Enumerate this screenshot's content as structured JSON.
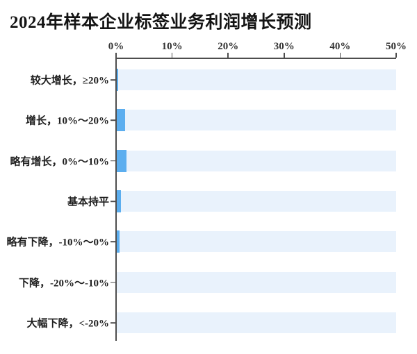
{
  "chart_data": {
    "type": "bar",
    "orientation": "horizontal",
    "title": "2024年样本企业标签业务利润增长预测",
    "categories": [
      "较大增长，≥20%",
      "增长，10%～20%",
      "略有增长，0%～10%",
      "基本持平",
      "略有下降，-10%～0%",
      "下降，-20%～-10%",
      "大幅下降，<-20%"
    ],
    "values": [
      0.25,
      1.5,
      1.75,
      0.75,
      0.5,
      0,
      0
    ],
    "value_unit": "%",
    "xlabel": "",
    "ylabel": "",
    "xlim": [
      0,
      50
    ],
    "x_tick_values": [
      0,
      10,
      20,
      30,
      40,
      50
    ],
    "x_tick_labels": [
      "0%",
      "10%",
      "20%",
      "30%",
      "40%",
      "50%"
    ],
    "axis_position": "top",
    "grid": "off",
    "legend": "none",
    "colors": {
      "bar": "#5caeef",
      "track": "#e9f2fc",
      "axis": "#4d4d4d",
      "tick_label": "#333333",
      "category_label": "#1f1f1f",
      "title": "#141414",
      "background": "#ffffff"
    }
  }
}
